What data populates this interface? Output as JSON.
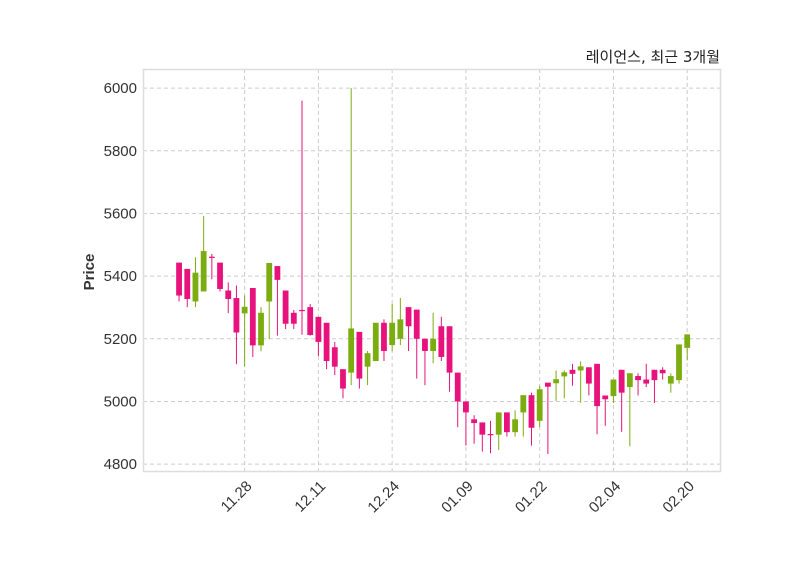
{
  "chart_data": {
    "type": "candlestick",
    "title": "레이언스, 최근 3개월",
    "xlabel": "",
    "ylabel": "Price",
    "ylim": [
      4778,
      6061
    ],
    "xlim": [
      -4.4,
      66
    ],
    "grid": true,
    "colors": {
      "up": "#7cad10",
      "down": "#e8127c",
      "grid": "#cccccc",
      "frame": "#dddddd"
    },
    "yticks": [
      4800,
      5000,
      5200,
      5400,
      5600,
      5800,
      6000
    ],
    "xticks": [
      {
        "index": 8,
        "label": "11.28"
      },
      {
        "index": 17,
        "label": "12.11"
      },
      {
        "index": 26,
        "label": "12.24"
      },
      {
        "index": 35,
        "label": "01.09"
      },
      {
        "index": 44,
        "label": "01.22"
      },
      {
        "index": 53,
        "label": "02.04"
      },
      {
        "index": 62,
        "label": "02.20"
      }
    ],
    "ohlc": [
      [
        5443,
        5443,
        5319,
        5338
      ],
      [
        5423,
        5423,
        5301,
        5327
      ],
      [
        5319,
        5460,
        5301,
        5411
      ],
      [
        5351,
        5592,
        5351,
        5480
      ],
      [
        5462,
        5471,
        5390,
        5458
      ],
      [
        5443,
        5443,
        5351,
        5359
      ],
      [
        5354,
        5380,
        5282,
        5327
      ],
      [
        5330,
        5370,
        5119,
        5220
      ],
      [
        5281,
        5338,
        5112,
        5302
      ],
      [
        5362,
        5362,
        5142,
        5179
      ],
      [
        5179,
        5301,
        5160,
        5283
      ],
      [
        5319,
        5442,
        5199,
        5442
      ],
      [
        5432,
        5432,
        5210,
        5388
      ],
      [
        5354,
        5354,
        5231,
        5248
      ],
      [
        5283,
        5292,
        5231,
        5248
      ],
      [
        5292,
        5960,
        5213,
        5290
      ],
      [
        5301,
        5311,
        5210,
        5212
      ],
      [
        5270,
        5270,
        5145,
        5190
      ],
      [
        5251,
        5251,
        5103,
        5129
      ],
      [
        5173,
        5190,
        5084,
        5111
      ],
      [
        5103,
        5103,
        5010,
        5041
      ],
      [
        5092,
        6000,
        5052,
        5233
      ],
      [
        5222,
        5222,
        5041,
        5073
      ],
      [
        5111,
        5161,
        5052,
        5154
      ],
      [
        5129,
        5251,
        5129,
        5251
      ],
      [
        5251,
        5262,
        5129,
        5161
      ],
      [
        5180,
        5311,
        5161,
        5251
      ],
      [
        5200,
        5330,
        5180,
        5262
      ],
      [
        5301,
        5301,
        5161,
        5240
      ],
      [
        5293,
        5293,
        5073,
        5200
      ],
      [
        5200,
        5200,
        5052,
        5161
      ],
      [
        5161,
        5283,
        5122,
        5200
      ],
      [
        5240,
        5270,
        5129,
        5142
      ],
      [
        5240,
        5240,
        5031,
        5092
      ],
      [
        5092,
        5092,
        4918,
        5000
      ],
      [
        5000,
        5000,
        4859,
        4965
      ],
      [
        4943,
        4956,
        4865,
        4931
      ],
      [
        4933,
        4933,
        4840,
        4894
      ],
      [
        4896,
        4938,
        4835,
        4893
      ],
      [
        4894,
        4965,
        4845,
        4965
      ],
      [
        4965,
        4965,
        4888,
        4902
      ],
      [
        4902,
        4972,
        4888,
        4943
      ],
      [
        4965,
        5020,
        4888,
        5020
      ],
      [
        5020,
        5028,
        4859,
        4916
      ],
      [
        4938,
        5050,
        4918,
        5039
      ],
      [
        5060,
        5060,
        4832,
        5047
      ],
      [
        5058,
        5099,
        5002,
        5071
      ],
      [
        5080,
        5099,
        5010,
        5093
      ],
      [
        5101,
        5120,
        5050,
        5088
      ],
      [
        5099,
        5128,
        4996,
        5112
      ],
      [
        5109,
        5109,
        5019,
        5057
      ],
      [
        5120,
        5120,
        4895,
        4985
      ],
      [
        5019,
        5019,
        4922,
        5007
      ],
      [
        5017,
        5070,
        4995,
        5070
      ],
      [
        5101,
        5101,
        4903,
        5028
      ],
      [
        5046,
        5090,
        4857,
        5090
      ],
      [
        5081,
        5090,
        5019,
        5068
      ],
      [
        5070,
        5120,
        5046,
        5057
      ],
      [
        5101,
        5101,
        4995,
        5068
      ],
      [
        5101,
        5109,
        5070,
        5090
      ],
      [
        5057,
        5090,
        5028,
        5081
      ],
      [
        5068,
        5182,
        5057,
        5182
      ],
      [
        5171,
        5214,
        5131,
        5214
      ]
    ]
  }
}
